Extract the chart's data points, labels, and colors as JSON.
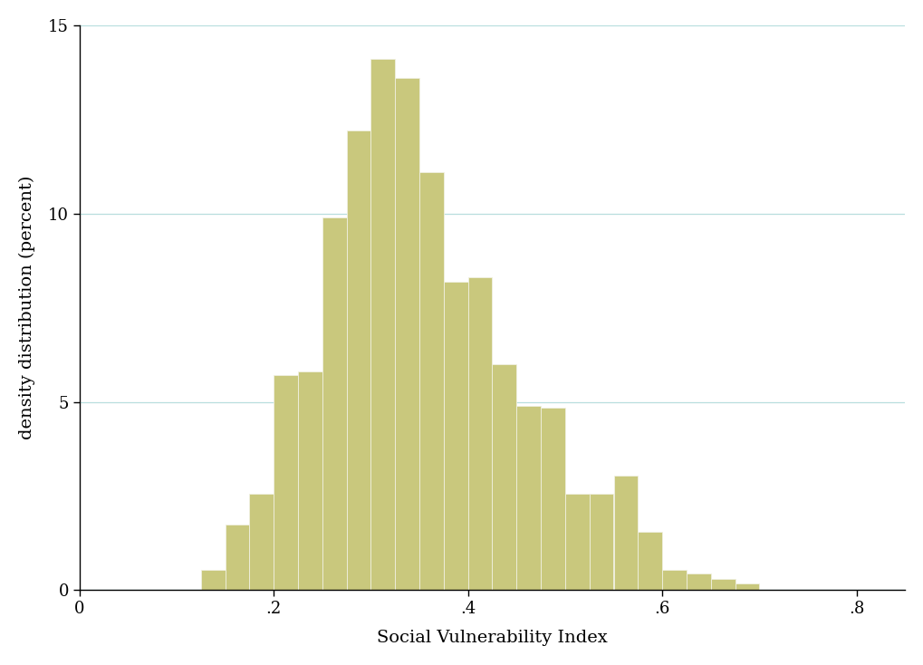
{
  "bar_lefts": [
    0.125,
    0.15,
    0.175,
    0.2,
    0.225,
    0.25,
    0.275,
    0.3,
    0.325,
    0.35,
    0.375,
    0.4,
    0.425,
    0.45,
    0.475,
    0.5,
    0.525,
    0.55,
    0.575,
    0.6,
    0.625,
    0.65,
    0.675,
    0.7
  ],
  "bar_heights": [
    0.55,
    1.75,
    2.55,
    5.7,
    5.8,
    9.9,
    12.2,
    14.1,
    13.6,
    11.1,
    8.2,
    8.3,
    6.0,
    4.9,
    4.85,
    2.55,
    2.55,
    3.05,
    1.55,
    0.55,
    0.45,
    0.3,
    0.18,
    0.0
  ],
  "bar_width": 0.025,
  "bar_color": "#c9c87d",
  "bar_edgecolor": "#f0f0e0",
  "bar_linewidth": 0.6,
  "xlabel": "Social Vulnerability Index",
  "ylabel": "density distribution (percent)",
  "xlim": [
    0,
    0.85
  ],
  "ylim": [
    0,
    15
  ],
  "xticks": [
    0,
    0.2,
    0.4,
    0.6,
    0.8
  ],
  "xticklabels": [
    "0",
    ".2",
    ".4",
    ".6",
    ".8"
  ],
  "yticks": [
    0,
    5,
    10,
    15
  ],
  "yticklabels": [
    "0",
    "5",
    "10",
    "15"
  ],
  "grid_color": "#b8dede",
  "grid_linewidth": 0.9,
  "spine_color": "#000000",
  "axis_linewidth": 1.0,
  "xlabel_fontsize": 14,
  "ylabel_fontsize": 14,
  "tick_fontsize": 13,
  "background_color": "#ffffff",
  "font_family": "serif"
}
